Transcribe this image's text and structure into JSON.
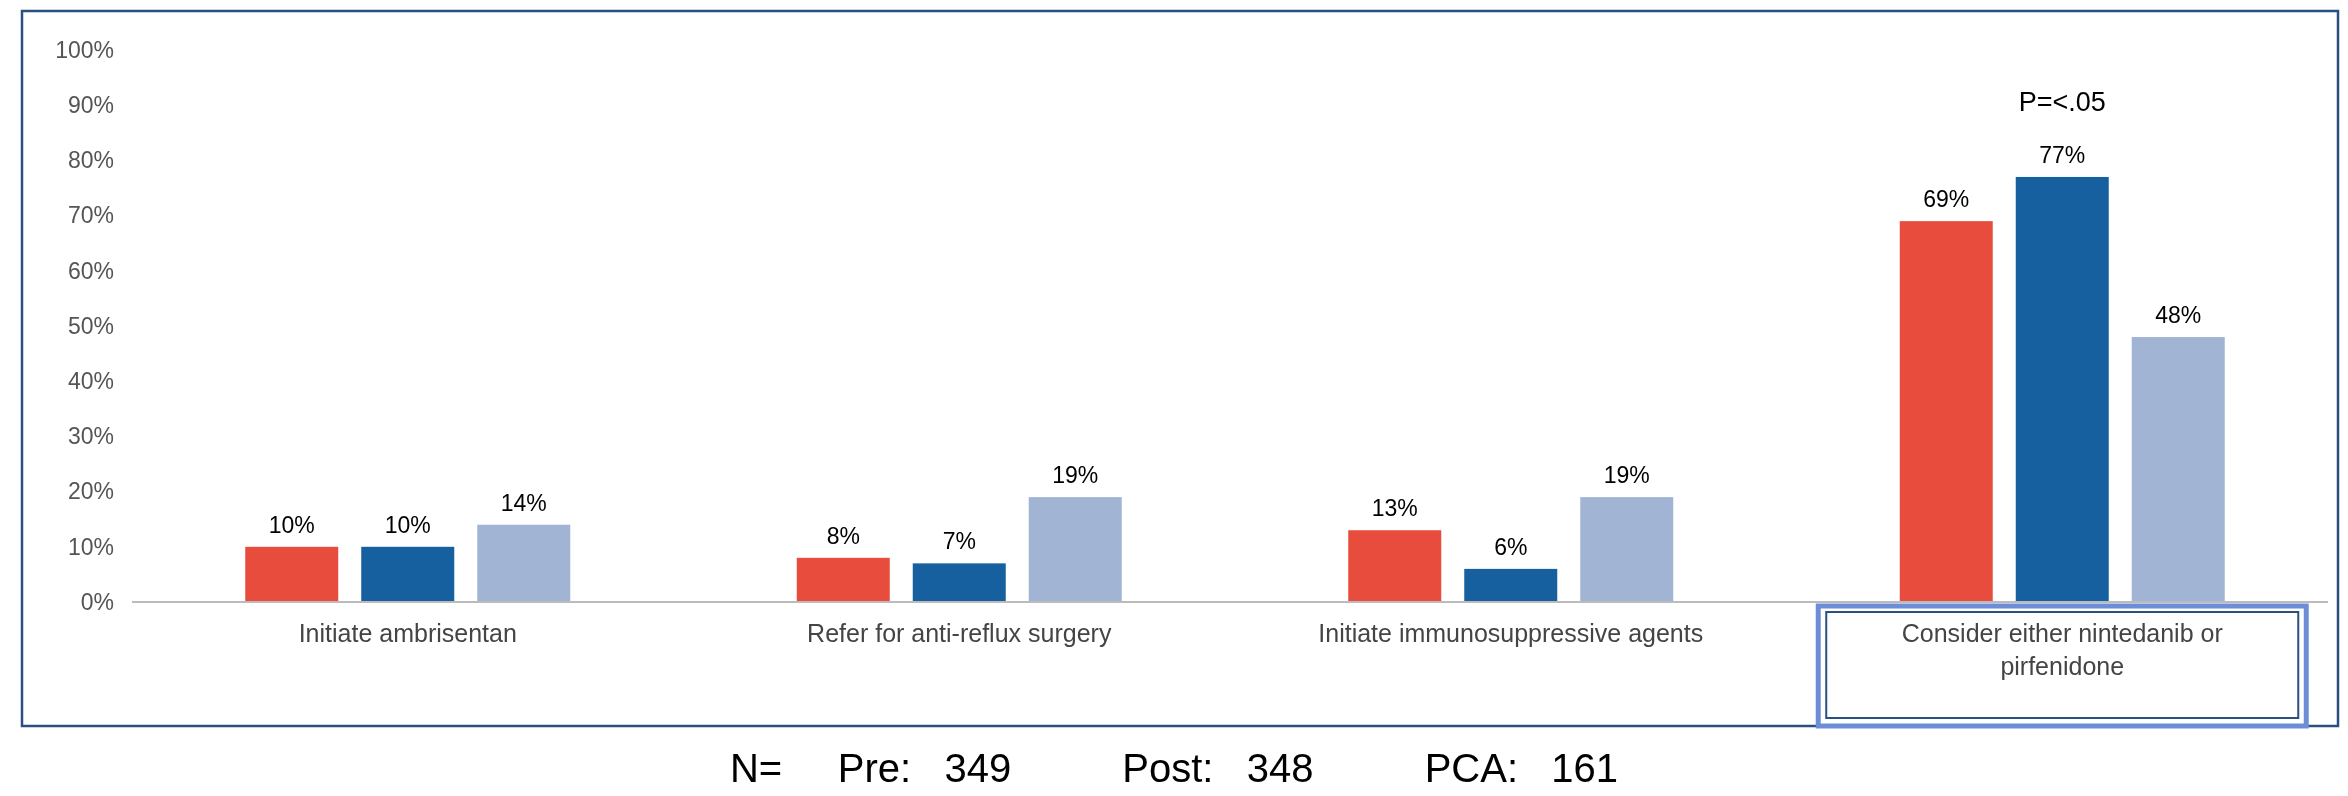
{
  "chart_data": {
    "type": "bar",
    "categories": [
      "Initiate ambrisentan",
      "Refer for anti-reflux surgery",
      "Initiate immunosuppressive agents",
      "Consider either nintedanib or pirfenidone"
    ],
    "series": [
      {
        "color": "#e84c3d",
        "values": [
          10,
          8,
          13,
          69
        ],
        "value_labels": [
          "10%",
          "8%",
          "13%",
          "69%"
        ]
      },
      {
        "color": "#1660a0",
        "values": [
          10,
          7,
          6,
          77
        ],
        "value_labels": [
          "10%",
          "7%",
          "6%",
          "77%"
        ]
      },
      {
        "color": "#a1b4d4",
        "values": [
          14,
          19,
          19,
          48
        ],
        "value_labels": [
          "14%",
          "19%",
          "19%",
          "48%"
        ]
      }
    ],
    "ylim": [
      0,
      100
    ],
    "yticks": [
      {
        "value": 0,
        "label": "0%"
      },
      {
        "value": 10,
        "label": "10%"
      },
      {
        "value": 20,
        "label": "20%"
      },
      {
        "value": 30,
        "label": "30%"
      },
      {
        "value": 40,
        "label": "40%"
      },
      {
        "value": 50,
        "label": "50%"
      },
      {
        "value": 60,
        "label": "60%"
      },
      {
        "value": 70,
        "label": "70%"
      },
      {
        "value": 80,
        "label": "80%"
      },
      {
        "value": 90,
        "label": "90%"
      },
      {
        "value": 100,
        "label": "100%"
      }
    ],
    "grid": false,
    "annotations": [
      "P=<.05",
      "N=     Pre:   349          Post:   348          PCA:   161"
    ]
  }
}
